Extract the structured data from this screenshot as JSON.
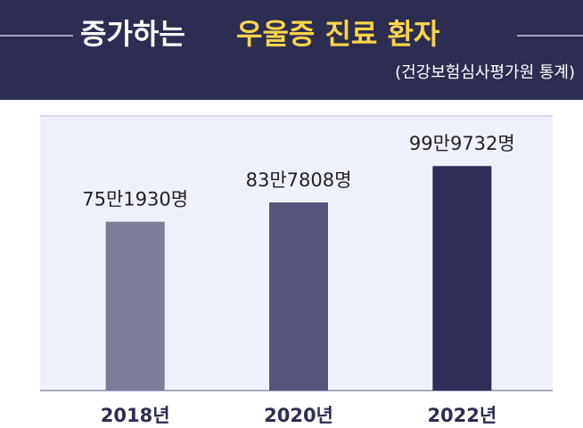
{
  "chart_data": {
    "type": "bar",
    "title_parts": [
      "증가하는",
      "우울증 진료 환자"
    ],
    "subtitle": "(건강보험심사평가원 통계)",
    "categories": [
      "2018년",
      "2020년",
      "2022년"
    ],
    "values": [
      751930,
      837808,
      999732
    ],
    "value_labels": [
      "75만1930명",
      "83만7808명",
      "99만9732명"
    ],
    "colors": [
      "#7c7d99",
      "#55557a",
      "#2f2f57"
    ],
    "ylim": [
      0,
      1100000
    ]
  }
}
